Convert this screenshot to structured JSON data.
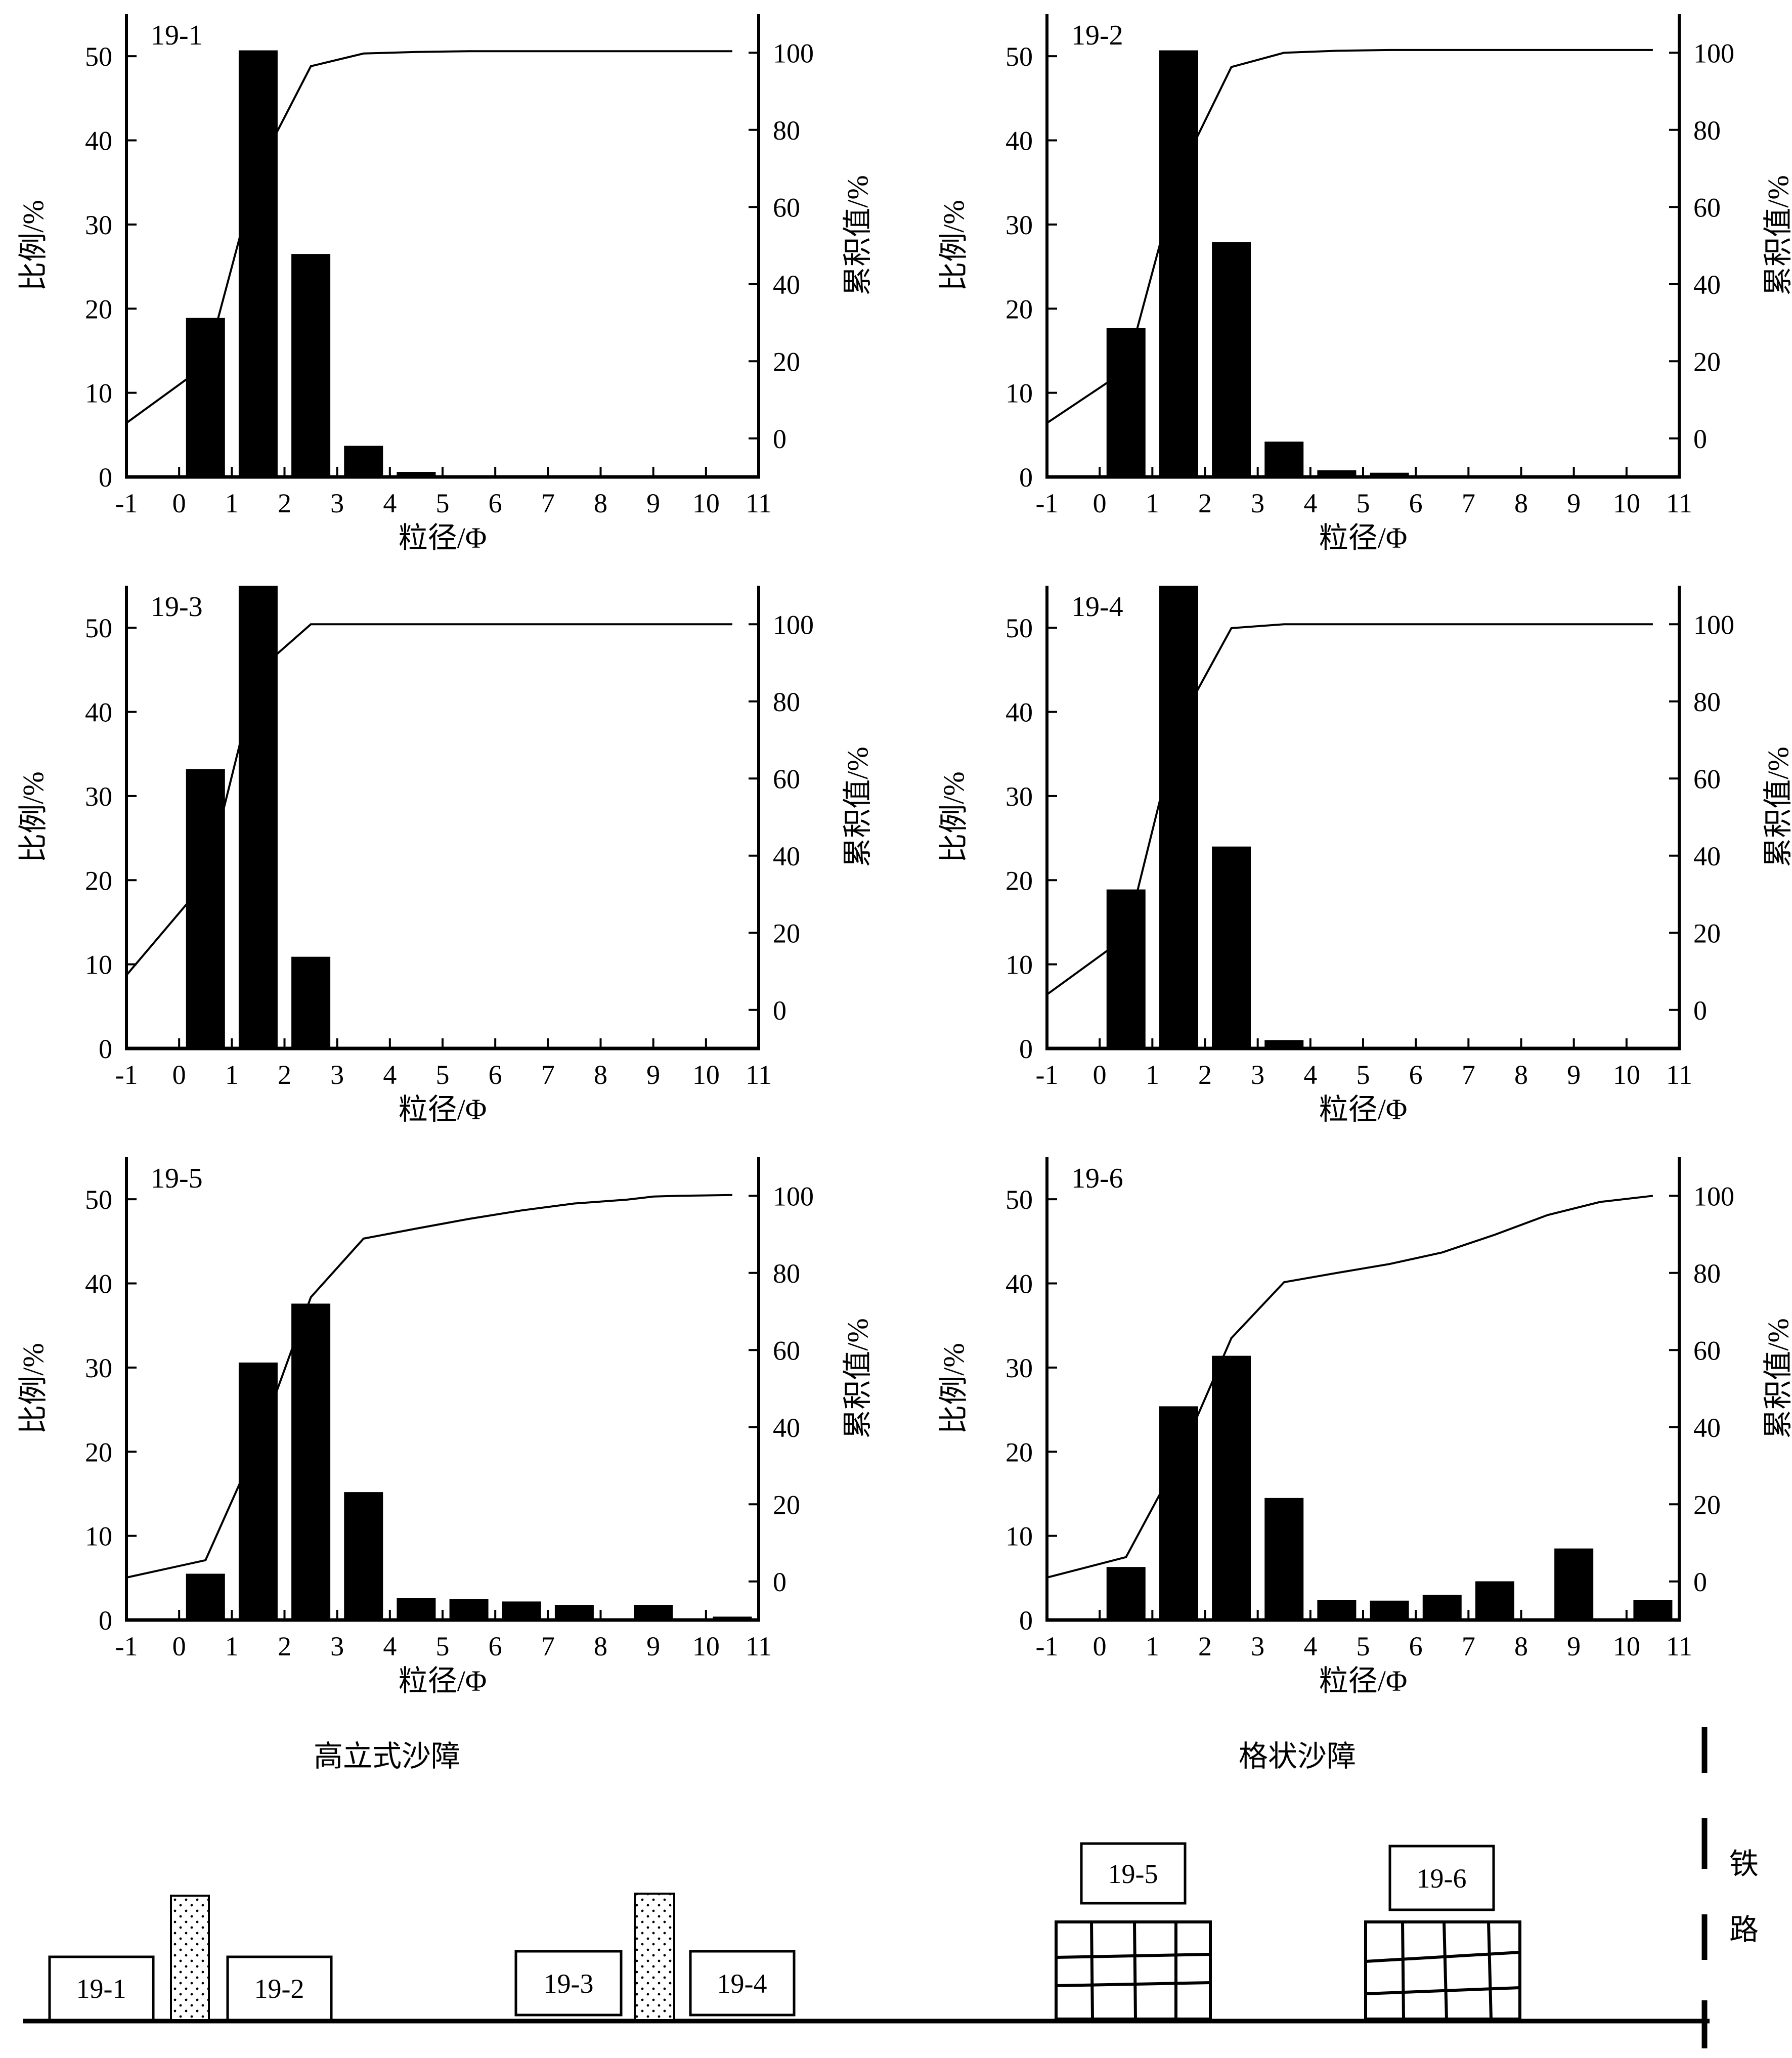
{
  "chart_data": [
    {
      "type": "bar",
      "title": "19-1",
      "xlabel": "粒径/Φ",
      "ylabel": "比例/%",
      "ylabel_right": "累积值/%",
      "xlim": [
        -1,
        11
      ],
      "ylim": [
        0,
        55
      ],
      "ylim_right": [
        -10,
        110
      ],
      "x_ticks": [
        "-1",
        "0",
        "1",
        "2",
        "3",
        "4",
        "5",
        "6",
        "7",
        "8",
        "9",
        "10",
        "11"
      ],
      "y_ticks": [
        "0",
        "10",
        "20",
        "30",
        "40",
        "50"
      ],
      "y_ticks_right": [
        "0",
        "20",
        "40",
        "60",
        "80",
        "100"
      ],
      "bars": [
        {
          "x": 0.5,
          "value": 18.9
        },
        {
          "x": 1.5,
          "value": 50.7
        },
        {
          "x": 2.5,
          "value": 26.5
        },
        {
          "x": 3.5,
          "value": 3.7
        },
        {
          "x": 4.5,
          "value": 0.6
        },
        {
          "x": 5.5,
          "value": 0.2
        }
      ],
      "cumulative": {
        "x": [
          -1,
          0.5,
          1.5,
          2.5,
          3.5,
          4.5,
          5.5,
          6.5,
          7.5,
          8.5,
          9.5,
          10.5
        ],
        "y": [
          4,
          18.9,
          70,
          96.5,
          99.8,
          100.2,
          100.4,
          100.4,
          100.4,
          100.4,
          100.4,
          100.4
        ]
      }
    },
    {
      "type": "bar",
      "title": "19-2",
      "xlabel": "粒径/Φ",
      "ylabel": "比例/%",
      "ylabel_right": "累积值/%",
      "xlim": [
        -1,
        11
      ],
      "ylim": [
        0,
        55
      ],
      "ylim_right": [
        -10,
        110
      ],
      "x_ticks": [
        "-1",
        "0",
        "1",
        "2",
        "3",
        "4",
        "5",
        "6",
        "7",
        "8",
        "9",
        "10",
        "11"
      ],
      "y_ticks": [
        "0",
        "10",
        "20",
        "30",
        "40",
        "50"
      ],
      "y_ticks_right": [
        "0",
        "20",
        "40",
        "60",
        "80",
        "100"
      ],
      "bars": [
        {
          "x": 0.5,
          "value": 17.7
        },
        {
          "x": 1.5,
          "value": 50.7
        },
        {
          "x": 2.5,
          "value": 27.9
        },
        {
          "x": 3.5,
          "value": 4.2
        },
        {
          "x": 4.5,
          "value": 0.8
        },
        {
          "x": 5.5,
          "value": 0.5
        }
      ],
      "cumulative": {
        "x": [
          -1,
          0.5,
          1.5,
          2.5,
          3.5,
          4.5,
          5.5,
          6.5,
          7.5,
          8.5,
          9.5,
          10.5
        ],
        "y": [
          4,
          17.7,
          68.4,
          96.3,
          100,
          100.5,
          100.7,
          100.7,
          100.7,
          100.7,
          100.7,
          100.7
        ]
      }
    },
    {
      "type": "bar",
      "title": "19-3",
      "xlabel": "粒径/Φ",
      "ylabel": "比例/%",
      "ylabel_right": "累积值/%",
      "xlim": [
        -1,
        11
      ],
      "ylim": [
        0,
        55
      ],
      "ylim_right": [
        -10,
        110
      ],
      "x_ticks": [
        "-1",
        "0",
        "1",
        "2",
        "3",
        "4",
        "5",
        "6",
        "7",
        "8",
        "9",
        "10",
        "11"
      ],
      "y_ticks": [
        "0",
        "10",
        "20",
        "30",
        "40",
        "50"
      ],
      "y_ticks_right": [
        "0",
        "20",
        "40",
        "60",
        "80",
        "100"
      ],
      "bars": [
        {
          "x": 0.5,
          "value": 33.2
        },
        {
          "x": 1.5,
          "value": 55
        },
        {
          "x": 2.5,
          "value": 10.9
        }
      ],
      "cumulative": {
        "x": [
          -1,
          0.5,
          1.5,
          2.5,
          3.5,
          4.5,
          5.5,
          6.5,
          7.5,
          8.5,
          9.5,
          10.5
        ],
        "y": [
          9,
          33.2,
          88,
          100,
          100,
          100,
          100,
          100,
          100,
          100,
          100,
          100
        ]
      }
    },
    {
      "type": "bar",
      "title": "19-4",
      "xlabel": "粒径/Φ",
      "ylabel": "比例/%",
      "ylabel_right": "累积值/%",
      "xlim": [
        -1,
        11
      ],
      "ylim": [
        0,
        55
      ],
      "ylim_right": [
        -10,
        110
      ],
      "x_ticks": [
        "-1",
        "0",
        "1",
        "2",
        "3",
        "4",
        "5",
        "6",
        "7",
        "8",
        "9",
        "10",
        "11"
      ],
      "y_ticks": [
        "0",
        "10",
        "20",
        "30",
        "40",
        "50"
      ],
      "y_ticks_right": [
        "0",
        "20",
        "40",
        "60",
        "80",
        "100"
      ],
      "bars": [
        {
          "x": 0.5,
          "value": 18.9
        },
        {
          "x": 1.5,
          "value": 55
        },
        {
          "x": 2.5,
          "value": 24
        },
        {
          "x": 3.5,
          "value": 1
        }
      ],
      "cumulative": {
        "x": [
          -1,
          0.5,
          1.5,
          2.5,
          3.5,
          4.5,
          5.5,
          6.5,
          7.5,
          8.5,
          9.5,
          10.5
        ],
        "y": [
          4,
          18.9,
          74,
          99,
          100,
          100,
          100,
          100,
          100,
          100,
          100,
          100
        ]
      }
    },
    {
      "type": "bar",
      "title": "19-5",
      "xlabel": "粒径/Φ",
      "ylabel": "比例/%",
      "ylabel_right": "累积值/%",
      "xlim": [
        -1,
        11
      ],
      "ylim": [
        0,
        55
      ],
      "ylim_right": [
        -10,
        110
      ],
      "x_ticks": [
        "-1",
        "0",
        "1",
        "2",
        "3",
        "4",
        "5",
        "6",
        "7",
        "8",
        "9",
        "10",
        "11"
      ],
      "y_ticks": [
        "0",
        "10",
        "20",
        "30",
        "40",
        "50"
      ],
      "y_ticks_right": [
        "0",
        "20",
        "40",
        "60",
        "80",
        "100"
      ],
      "bars": [
        {
          "x": 0.5,
          "value": 5.5
        },
        {
          "x": 1.5,
          "value": 30.6
        },
        {
          "x": 2.5,
          "value": 37.6
        },
        {
          "x": 3.5,
          "value": 15.2
        },
        {
          "x": 4.5,
          "value": 2.6
        },
        {
          "x": 5.5,
          "value": 2.5
        },
        {
          "x": 6.5,
          "value": 2.2
        },
        {
          "x": 7.5,
          "value": 1.8
        },
        {
          "x": 9,
          "value": 1.8
        },
        {
          "x": 10.5,
          "value": 0.4
        }
      ],
      "cumulative": {
        "x": [
          -1,
          0.5,
          1.5,
          2.5,
          3.5,
          4.5,
          5.5,
          6.5,
          7.5,
          8.5,
          9,
          9.5,
          10.5
        ],
        "y": [
          1,
          5.5,
          36.1,
          73.7,
          88.9,
          91.5,
          94,
          96.2,
          98,
          99,
          99.8,
          100,
          100.2
        ]
      }
    },
    {
      "type": "bar",
      "title": "19-6",
      "xlabel": "粒径/Φ",
      "ylabel": "比例/%",
      "ylabel_right": "累积值/%",
      "xlim": [
        -1,
        11
      ],
      "ylim": [
        0,
        55
      ],
      "ylim_right": [
        -10,
        110
      ],
      "x_ticks": [
        "-1",
        "0",
        "1",
        "2",
        "3",
        "4",
        "5",
        "6",
        "7",
        "8",
        "9",
        "10",
        "11"
      ],
      "y_ticks": [
        "0",
        "10",
        "20",
        "30",
        "40",
        "50"
      ],
      "y_ticks_right": [
        "0",
        "20",
        "40",
        "60",
        "80",
        "100"
      ],
      "bars": [
        {
          "x": 0.5,
          "value": 6.3
        },
        {
          "x": 1.5,
          "value": 25.4
        },
        {
          "x": 2.5,
          "value": 31.4
        },
        {
          "x": 3.5,
          "value": 14.5
        },
        {
          "x": 4.5,
          "value": 2.4
        },
        {
          "x": 5.5,
          "value": 2.3
        },
        {
          "x": 6.5,
          "value": 3
        },
        {
          "x": 7.5,
          "value": 4.6
        },
        {
          "x": 9,
          "value": 8.5
        },
        {
          "x": 10.5,
          "value": 2.4
        }
      ],
      "cumulative": {
        "x": [
          -1,
          0.5,
          1.5,
          2.5,
          3.5,
          4.5,
          5.5,
          6.5,
          7.5,
          8.5,
          9.5,
          10.5
        ],
        "y": [
          1,
          6.3,
          31.7,
          63.1,
          77.6,
          80,
          82.3,
          85.3,
          89.9,
          95,
          98.4,
          100
        ]
      }
    }
  ],
  "diagram": {
    "label_left": "高立式沙障",
    "label_middle": "格状沙障",
    "railway_char_1": "铁",
    "railway_char_2": "路",
    "sites": [
      "19-1",
      "19-2",
      "19-3",
      "19-4",
      "19-5",
      "19-6"
    ]
  }
}
